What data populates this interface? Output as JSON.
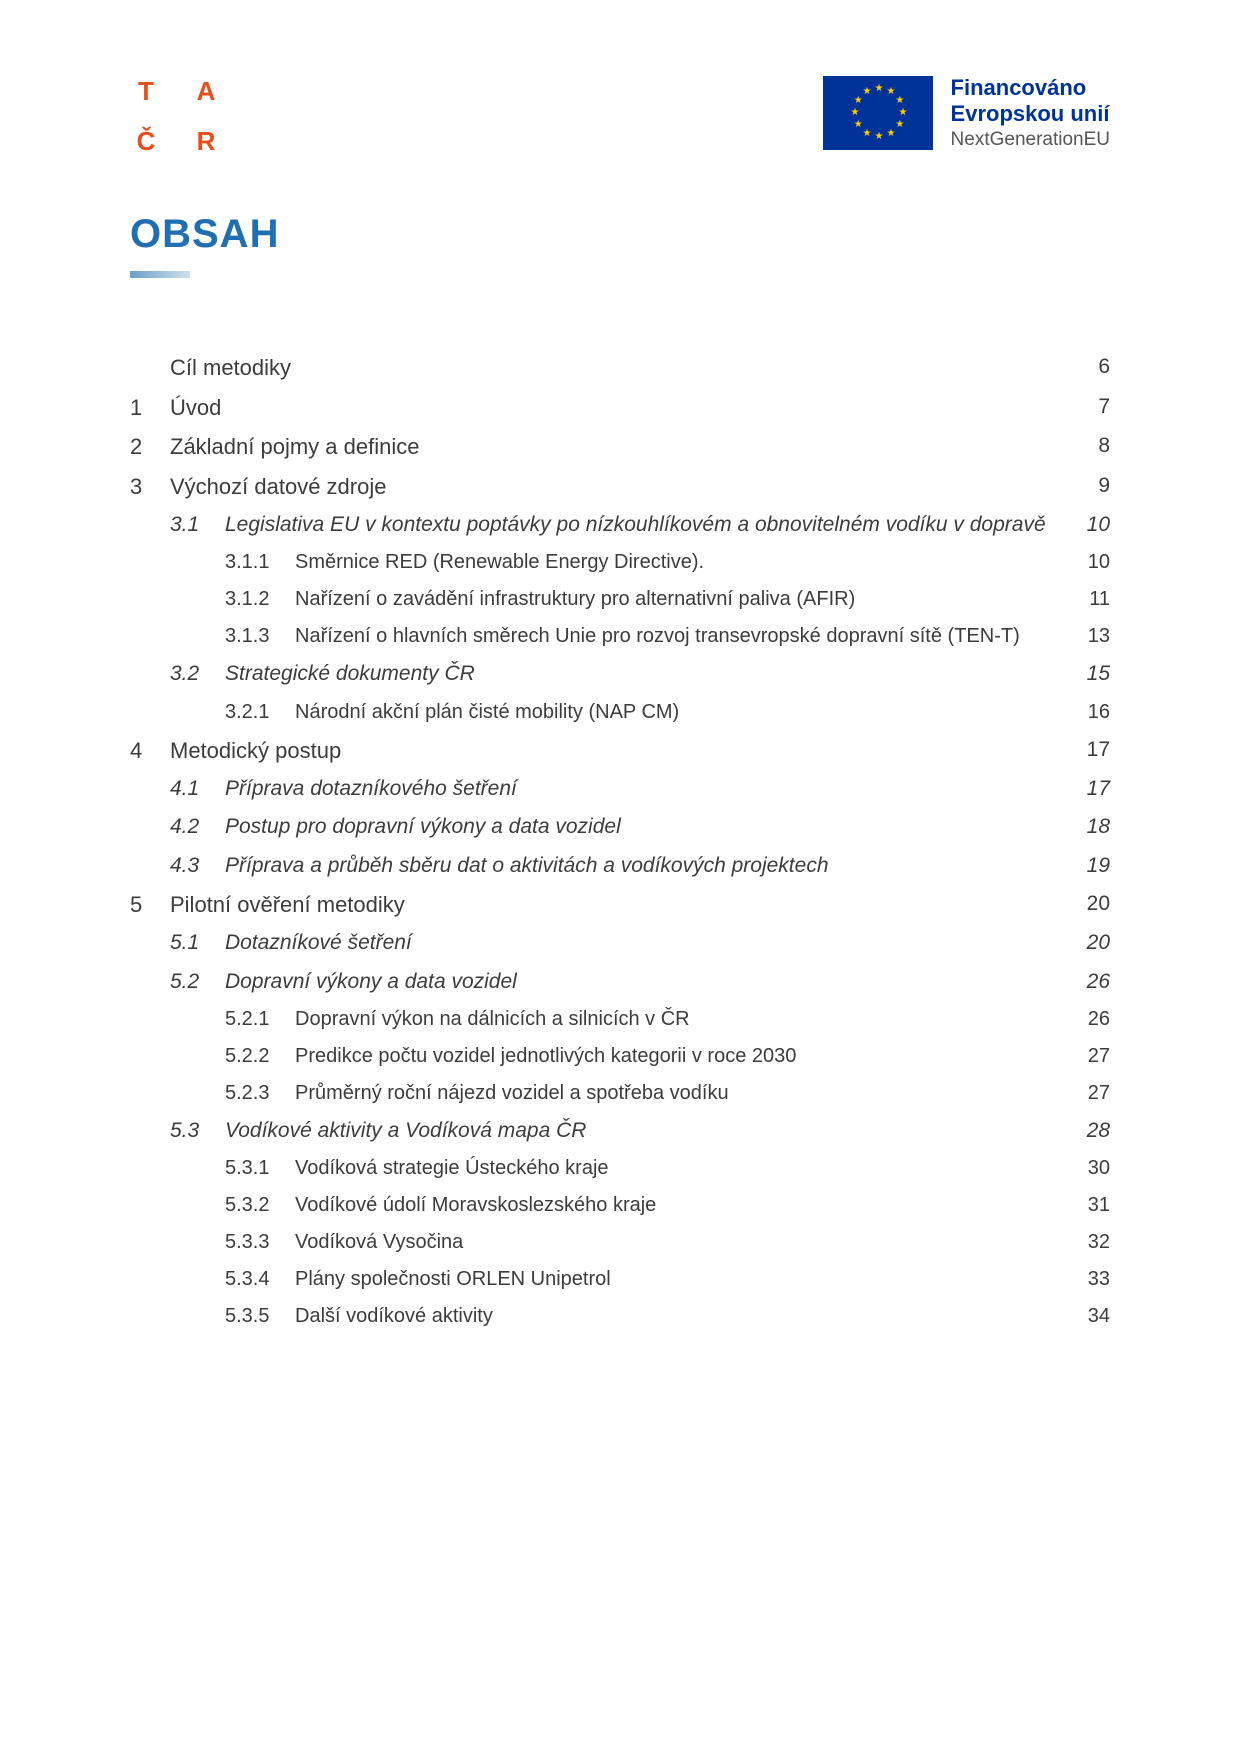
{
  "header": {
    "tacr": [
      "T",
      "A",
      "Č",
      "R"
    ],
    "eu": {
      "line1": "Financováno",
      "line2": "Evropskou unií",
      "line3": "NextGenerationEU",
      "flag_bg": "#003399",
      "star_color": "#ffcc00"
    }
  },
  "title": "OBSAH",
  "title_color": "#1f6fb2",
  "toc": [
    {
      "level": 0,
      "num": "",
      "title": "Cíl metodiky",
      "page": "6"
    },
    {
      "level": 0,
      "num": "1",
      "title": "Úvod",
      "page": "7"
    },
    {
      "level": 0,
      "num": "2",
      "title": "Základní pojmy a definice",
      "page": "8"
    },
    {
      "level": 0,
      "num": "3",
      "title": "Výchozí datové zdroje",
      "page": "9"
    },
    {
      "level": 1,
      "num": "3.1",
      "title": "Legislativa EU v kontextu poptávky po nízkouhlíkovém a obnovitelném vodíku v dopravě",
      "page": "10",
      "italic_page": true
    },
    {
      "level": 2,
      "num": "3.1.1",
      "title": "Směrnice RED (Renewable Energy Directive).",
      "page": "10"
    },
    {
      "level": 2,
      "num": "3.1.2",
      "title": "Nařízení o zavádění infrastruktury pro alternativní paliva (AFIR)",
      "page": "11"
    },
    {
      "level": 2,
      "num": "3.1.3",
      "title": "Nařízení o hlavních směrech Unie pro rozvoj transevropské dopravní sítě (TEN-T)",
      "page": "13"
    },
    {
      "level": 1,
      "num": "3.2",
      "title": "Strategické dokumenty ČR",
      "page": "15",
      "italic_page": true
    },
    {
      "level": 2,
      "num": "3.2.1",
      "title": "Národní akční plán čisté mobility (NAP CM)",
      "page": "16"
    },
    {
      "level": 0,
      "num": "4",
      "title": "Metodický postup",
      "page": "17"
    },
    {
      "level": 1,
      "num": "4.1",
      "title": "Příprava dotazníkového šetření",
      "page": "17",
      "italic_page": true
    },
    {
      "level": 1,
      "num": "4.2",
      "title": "Postup pro dopravní výkony a data vozidel",
      "page": "18",
      "italic_page": true
    },
    {
      "level": 1,
      "num": "4.3",
      "title": "Příprava a průběh sběru dat o aktivitách a vodíkových projektech",
      "page": "19",
      "italic_page": true
    },
    {
      "level": 0,
      "num": "5",
      "title": "Pilotní ověření metodiky",
      "page": "20"
    },
    {
      "level": 1,
      "num": "5.1",
      "title": "Dotazníkové šetření",
      "page": "20",
      "italic_page": true
    },
    {
      "level": 1,
      "num": "5.2",
      "title": "Dopravní výkony a data vozidel",
      "page": "26",
      "italic_page": true
    },
    {
      "level": 2,
      "num": "5.2.1",
      "title": "Dopravní výkon na dálnicích a silnicích v ČR",
      "page": "26"
    },
    {
      "level": 2,
      "num": "5.2.2",
      "title": "Predikce počtu vozidel jednotlivých kategorii v roce 2030",
      "page": "27"
    },
    {
      "level": 2,
      "num": "5.2.3",
      "title": "Průměrný roční nájezd vozidel a spotřeba vodíku",
      "page": "27"
    },
    {
      "level": 1,
      "num": "5.3",
      "title": "Vodíkové aktivity a Vodíková mapa ČR",
      "page": "28",
      "italic_page": true
    },
    {
      "level": 2,
      "num": "5.3.1",
      "title": "Vodíková strategie Ústeckého kraje",
      "page": "30"
    },
    {
      "level": 2,
      "num": "5.3.2",
      "title": "Vodíkové údolí Moravskoslezského kraje",
      "page": "31"
    },
    {
      "level": 2,
      "num": "5.3.3",
      "title": "Vodíková Vysočina",
      "page": "32"
    },
    {
      "level": 2,
      "num": "5.3.4",
      "title": "Plány společnosti ORLEN Unipetrol",
      "page": "33"
    },
    {
      "level": 2,
      "num": "5.3.5",
      "title": "Další vodíkové aktivity",
      "page": "34"
    }
  ]
}
